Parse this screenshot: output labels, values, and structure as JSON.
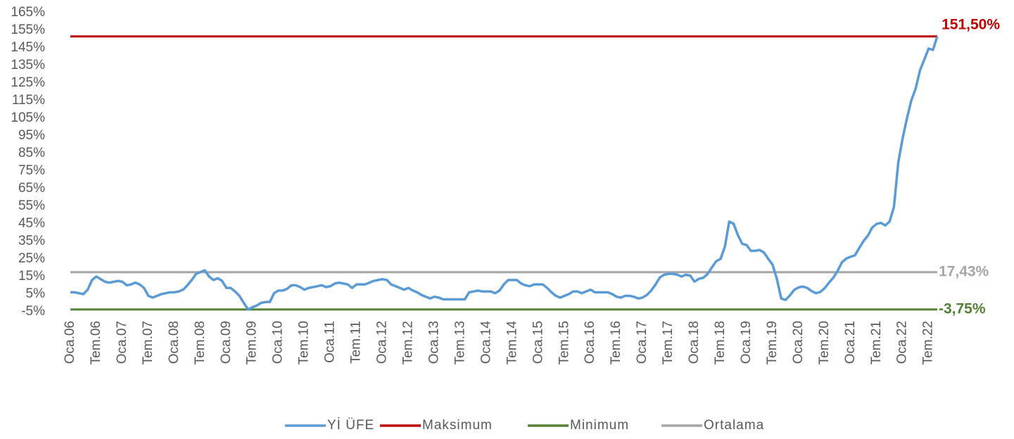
{
  "chart_data": {
    "type": "line",
    "categories": [
      "Oca.06",
      null,
      null,
      null,
      null,
      null,
      "Tem.06",
      null,
      null,
      null,
      null,
      null,
      "Oca.07",
      null,
      null,
      null,
      null,
      null,
      "Tem.07",
      null,
      null,
      null,
      null,
      null,
      "Oca.08",
      null,
      null,
      null,
      null,
      null,
      "Tem.08",
      null,
      null,
      null,
      null,
      null,
      "Oca.09",
      null,
      null,
      null,
      null,
      null,
      "Tem.09",
      null,
      null,
      null,
      null,
      null,
      "Oca.10",
      null,
      null,
      null,
      null,
      null,
      "Tem.10",
      null,
      null,
      null,
      null,
      null,
      "Oca.11",
      null,
      null,
      null,
      null,
      null,
      "Tem.11",
      null,
      null,
      null,
      null,
      null,
      "Oca.12",
      null,
      null,
      null,
      null,
      null,
      "Tem.12",
      null,
      null,
      null,
      null,
      null,
      "Oca.13",
      null,
      null,
      null,
      null,
      null,
      "Tem.13",
      null,
      null,
      null,
      null,
      null,
      "Oca.14",
      null,
      null,
      null,
      null,
      null,
      "Tem.14",
      null,
      null,
      null,
      null,
      null,
      "Oca.15",
      null,
      null,
      null,
      null,
      null,
      "Tem.15",
      null,
      null,
      null,
      null,
      null,
      "Oca.16",
      null,
      null,
      null,
      null,
      null,
      "Tem.16",
      null,
      null,
      null,
      null,
      null,
      "Oca.17",
      null,
      null,
      null,
      null,
      null,
      "Tem.17",
      null,
      null,
      null,
      null,
      null,
      "Oca.18",
      null,
      null,
      null,
      null,
      null,
      "Tem.18",
      null,
      null,
      null,
      null,
      null,
      "Oca.19",
      null,
      null,
      null,
      null,
      null,
      "Tem.19",
      null,
      null,
      null,
      null,
      null,
      "Oca.20",
      null,
      null,
      null,
      null,
      null,
      "Tem.20",
      null,
      null,
      null,
      null,
      null,
      "Oca.21",
      null,
      null,
      null,
      null,
      null,
      "Tem.21",
      null,
      null,
      null,
      null,
      null,
      "Oca.22",
      null,
      null,
      null,
      null,
      null,
      "Tem.22",
      null,
      null
    ],
    "series": [
      {
        "name": "Yİ ÜFE",
        "color": "#5b9bd5",
        "values": [
          6,
          6,
          5.5,
          5,
          7.5,
          13,
          15,
          13.5,
          12,
          11.5,
          12,
          12.5,
          12,
          10,
          10.5,
          11.5,
          10.5,
          8.5,
          4,
          3,
          4,
          5,
          5.5,
          6,
          6,
          6.5,
          7.5,
          10,
          13,
          16.5,
          17.5,
          18.5,
          15,
          13,
          14,
          12.5,
          8.5,
          8.5,
          6.5,
          4,
          0,
          -3.75,
          -2.5,
          -1.5,
          0,
          0.5,
          0.5,
          5.5,
          7,
          7,
          8,
          10,
          10,
          9,
          7.5,
          8.5,
          9,
          9.5,
          10,
          9,
          9.5,
          11,
          11.5,
          11,
          10.5,
          8.5,
          10.5,
          10.5,
          10.5,
          11.5,
          12.5,
          13,
          13.5,
          13,
          10.5,
          9.5,
          8.5,
          7.5,
          8.5,
          7,
          6,
          4.5,
          3.5,
          2.5,
          3.5,
          3,
          2,
          2,
          2,
          2,
          2,
          2,
          6,
          6.5,
          7,
          6.5,
          6.5,
          6.5,
          5.5,
          7,
          10.5,
          13,
          13,
          13,
          11,
          10,
          9.5,
          10.5,
          10.5,
          10.5,
          8.5,
          6,
          4,
          3,
          4,
          5,
          6.5,
          6.5,
          5.5,
          6.5,
          7.5,
          6,
          6,
          6,
          6,
          5,
          3.5,
          3,
          4,
          4,
          3.5,
          2.5,
          3,
          4.5,
          7,
          10.5,
          14.5,
          16,
          16.5,
          16.5,
          16,
          15,
          16,
          15.5,
          12.1,
          13.7,
          14.3,
          16.4,
          20.2,
          23.7,
          25,
          32.1,
          46.2,
          45,
          38.5,
          33.6,
          32.9,
          29.6,
          29.6,
          30.1,
          28.7,
          25,
          21.7,
          13.5,
          2.5,
          1.7,
          4.3,
          7.4,
          8.8,
          9.3,
          8.5,
          6.7,
          5.5,
          6.2,
          8.3,
          11.5,
          14.3,
          18.2,
          23.1,
          25.2,
          26.2,
          27.1,
          31.2,
          35.2,
          38.3,
          42.9,
          44.9,
          45.5,
          44,
          46.3,
          54.6,
          79.9,
          93.5,
          105,
          115,
          121.8,
          132.2,
          138.3,
          144.6,
          143.8,
          151.5
        ]
      }
    ],
    "reference_lines": [
      {
        "name": "Maksimum",
        "color": "#c00000",
        "value": 151.5,
        "label": "151,50%"
      },
      {
        "name": "Minimum",
        "color": "#538135",
        "value": -3.75,
        "label": "-3,75%"
      },
      {
        "name": "Ortalama",
        "color": "#a5a5a5",
        "value": 17.43,
        "label": "17,43%"
      }
    ],
    "ylim": [
      -5,
      165
    ],
    "yticks": [
      {
        "value": -5,
        "label": "-5%"
      },
      {
        "value": 5,
        "label": "5%"
      },
      {
        "value": 15,
        "label": "15%"
      },
      {
        "value": 25,
        "label": "25%"
      },
      {
        "value": 35,
        "label": "35%"
      },
      {
        "value": 45,
        "label": "45%"
      },
      {
        "value": 55,
        "label": "55%"
      },
      {
        "value": 65,
        "label": "65%"
      },
      {
        "value": 75,
        "label": "75%"
      },
      {
        "value": 85,
        "label": "85%"
      },
      {
        "value": 95,
        "label": "95%"
      },
      {
        "value": 105,
        "label": "105%"
      },
      {
        "value": 115,
        "label": "115%"
      },
      {
        "value": 125,
        "label": "125%"
      },
      {
        "value": 135,
        "label": "135%"
      },
      {
        "value": 145,
        "label": "145%"
      },
      {
        "value": 155,
        "label": "155%"
      },
      {
        "value": 165,
        "label": "165%"
      }
    ],
    "grid": false,
    "legend": "bottom"
  }
}
